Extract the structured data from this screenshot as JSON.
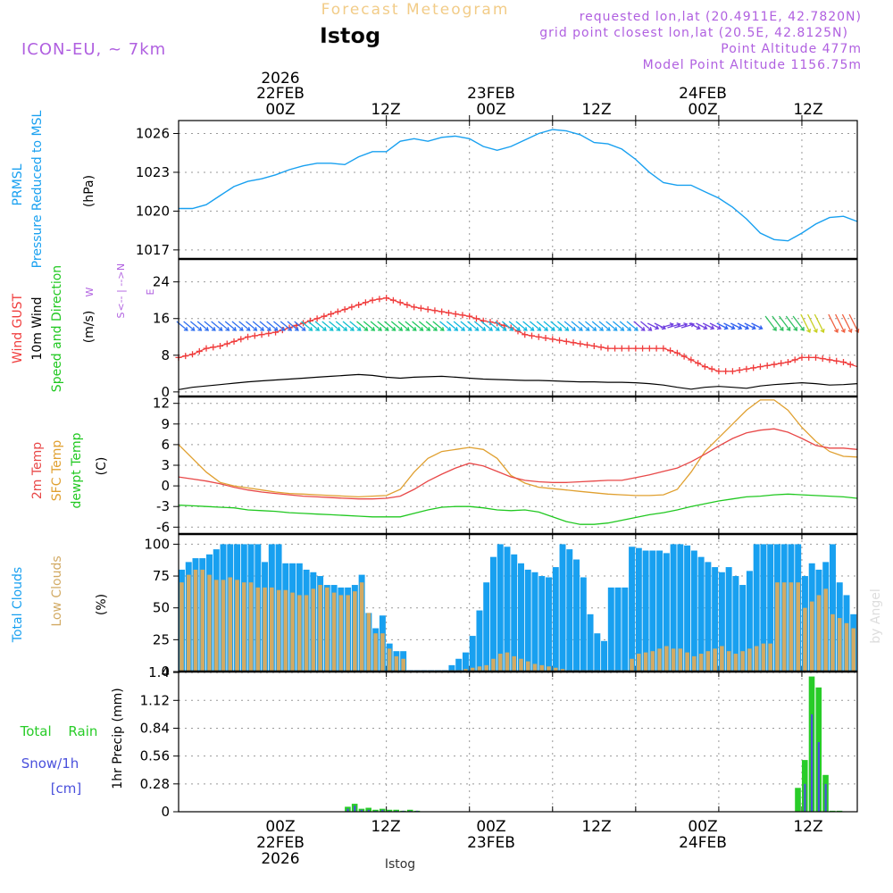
{
  "header": {
    "title": "Forecast Meteogram",
    "station": "Istog",
    "model": "ICON-EU, ~ 7km",
    "requested": "requested lon,lat (20.4911E, 42.7820N)",
    "grid_point": "grid point closest lon,lat (20.5E, 42.8125N)",
    "point_altitude": "Point Altitude 477m",
    "model_altitude": "Model Point Altitude 1156.75m",
    "footer_station": "Istog",
    "credit": "by Angel"
  },
  "time_axis": {
    "top_ticks": [
      "00Z",
      "12Z",
      "00Z",
      "12Z",
      "00Z",
      "12Z"
    ],
    "bottom_ticks": [
      "00Z",
      "12Z",
      "00Z",
      "12Z",
      "00Z",
      "12Z"
    ],
    "date_labels": [
      "22FEB",
      "23FEB",
      "24FEB"
    ],
    "year": "2026"
  },
  "colors": {
    "pressure": "#18a0f0",
    "gust": "#f03c3c",
    "wind": "#000000",
    "wind_label": "#20c820",
    "temp": "#e84848",
    "sfc_temp": "#e0a030",
    "dewpt": "#20c820",
    "total_clouds": "#18a0f0",
    "low_clouds": "#d2aa64",
    "rain": "#28cc28",
    "snow": "#4a50dc",
    "purple": "#b060e0"
  },
  "chart_data": [
    {
      "type": "line",
      "title": "PRMSL Pressure Reduced to MSL",
      "label_lines": [
        "PRMSL",
        "Pressure Reduced to MSL"
      ],
      "unit": "(hPa)",
      "x_start_hours": -30,
      "x_end_hours": 68,
      "ylim": [
        1016.3,
        1027.0
      ],
      "yticks": [
        1017,
        1020,
        1023,
        1026
      ],
      "series": [
        {
          "name": "Pressure",
          "x": [
            -30,
            -28,
            -26,
            -24,
            -22,
            -20,
            -18,
            -16,
            -14,
            -12,
            -10,
            -8,
            -6,
            -4,
            -2,
            0,
            2,
            4,
            6,
            8,
            10,
            12,
            14,
            16,
            18,
            20,
            22,
            24,
            26,
            28,
            30,
            32,
            34,
            36,
            38,
            40,
            42,
            44,
            46,
            48,
            50,
            52,
            54,
            56,
            58,
            60,
            62,
            64,
            66,
            68
          ],
          "values": [
            1020.2,
            1020.2,
            1020.5,
            1021.2,
            1021.9,
            1022.3,
            1022.5,
            1022.8,
            1023.2,
            1023.5,
            1023.7,
            1023.7,
            1023.6,
            1024.2,
            1024.6,
            1024.6,
            1025.4,
            1025.6,
            1025.4,
            1025.7,
            1025.8,
            1025.6,
            1025.0,
            1024.7,
            1025.0,
            1025.5,
            1026.0,
            1026.3,
            1026.2,
            1025.9,
            1025.3,
            1025.2,
            1024.8,
            1024.0,
            1023.0,
            1022.2,
            1022.0,
            1022.0,
            1021.5,
            1021.0,
            1020.3,
            1019.4,
            1018.3,
            1017.8,
            1017.7,
            1018.3,
            1019.0,
            1019.5,
            1019.6,
            1019.2
          ]
        }
      ]
    },
    {
      "type": "line",
      "title": "Wind GUST, 10m Wind Speed and Direction",
      "label_lines": [
        "Wind GUST",
        "10m Wind",
        "Speed and Direction"
      ],
      "unit": "(m/s)",
      "compass": [
        "N",
        "E",
        "S",
        "W"
      ],
      "x_start_hours": -30,
      "x_end_hours": 68,
      "ylim": [
        -1,
        29
      ],
      "yticks": [
        0,
        8,
        16,
        24
      ],
      "series": [
        {
          "name": "Wind GUST",
          "x": [
            -30,
            -28,
            -26,
            -24,
            -22,
            -20,
            -18,
            -16,
            -14,
            -12,
            -10,
            -8,
            -6,
            -4,
            -2,
            0,
            2,
            4,
            6,
            8,
            10,
            12,
            14,
            16,
            18,
            20,
            22,
            24,
            26,
            28,
            30,
            32,
            34,
            36,
            38,
            40,
            42,
            44,
            46,
            48,
            50,
            52,
            54,
            56,
            58,
            60,
            62,
            64,
            66,
            68
          ],
          "values": [
            7.5,
            8.2,
            9.5,
            10.0,
            11.0,
            12.0,
            12.5,
            13.0,
            14.0,
            15.0,
            16.0,
            17.0,
            18.0,
            19.0,
            20.0,
            20.5,
            19.5,
            18.5,
            18.0,
            17.5,
            17.0,
            16.5,
            15.5,
            15.0,
            14.0,
            12.5,
            12.0,
            11.5,
            11.0,
            10.5,
            10.0,
            9.5,
            9.5,
            9.5,
            9.5,
            9.5,
            8.5,
            7.0,
            5.5,
            4.5,
            4.5,
            5.0,
            5.5,
            6.0,
            6.5,
            7.5,
            7.5,
            7.0,
            6.5,
            5.5
          ]
        },
        {
          "name": "10m Wind",
          "x": [
            -30,
            -28,
            -26,
            -24,
            -22,
            -20,
            -18,
            -16,
            -14,
            -12,
            -10,
            -8,
            -6,
            -4,
            -2,
            0,
            2,
            4,
            6,
            8,
            10,
            12,
            14,
            16,
            18,
            20,
            22,
            24,
            26,
            28,
            30,
            32,
            34,
            36,
            38,
            40,
            42,
            44,
            46,
            48,
            50,
            52,
            54,
            56,
            58,
            60,
            62,
            64,
            66,
            68
          ],
          "values": [
            0.5,
            1.0,
            1.3,
            1.6,
            1.9,
            2.2,
            2.4,
            2.6,
            2.8,
            3.0,
            3.2,
            3.4,
            3.6,
            3.8,
            3.6,
            3.2,
            3.0,
            3.2,
            3.3,
            3.4,
            3.2,
            3.0,
            2.8,
            2.7,
            2.6,
            2.5,
            2.5,
            2.4,
            2.3,
            2.2,
            2.2,
            2.1,
            2.1,
            2.0,
            1.8,
            1.5,
            1.0,
            0.6,
            1.0,
            1.2,
            1.0,
            0.8,
            1.3,
            1.6,
            1.8,
            2.0,
            1.8,
            1.5,
            1.6,
            1.8
          ]
        }
      ]
    },
    {
      "type": "line",
      "title": "2m Temp, SFC Temp, dewpt Temp",
      "label_lines": [
        "2m Temp",
        "SFC Temp",
        "dewpt Temp"
      ],
      "unit": "(C)",
      "x_start_hours": -30,
      "x_end_hours": 68,
      "ylim": [
        -7,
        13
      ],
      "yticks": [
        -6,
        -3,
        0,
        3,
        6,
        9,
        12
      ],
      "series": [
        {
          "name": "2m Temp",
          "x": [
            -30,
            -28,
            -26,
            -24,
            -22,
            -20,
            -18,
            -16,
            -14,
            -12,
            -10,
            -8,
            -6,
            -4,
            -2,
            0,
            2,
            4,
            6,
            8,
            10,
            12,
            14,
            16,
            18,
            20,
            22,
            24,
            26,
            28,
            30,
            32,
            34,
            36,
            38,
            40,
            42,
            44,
            46,
            48,
            50,
            52,
            54,
            56,
            58,
            60,
            62,
            64,
            66,
            68
          ],
          "values": [
            1.3,
            1.0,
            0.7,
            0.3,
            -0.2,
            -0.6,
            -0.9,
            -1.1,
            -1.3,
            -1.5,
            -1.6,
            -1.7,
            -1.8,
            -1.9,
            -1.9,
            -1.8,
            -1.5,
            -0.5,
            0.7,
            1.7,
            2.6,
            3.3,
            2.9,
            2.1,
            1.3,
            0.8,
            0.6,
            0.5,
            0.5,
            0.6,
            0.7,
            0.8,
            0.8,
            1.2,
            1.6,
            2.1,
            2.6,
            3.5,
            4.6,
            5.8,
            6.9,
            7.7,
            8.1,
            8.3,
            7.8,
            6.9,
            5.9,
            5.5,
            5.5,
            5.3
          ]
        },
        {
          "name": "SFC Temp",
          "x": [
            -30,
            -28,
            -26,
            -24,
            -22,
            -20,
            -18,
            -16,
            -14,
            -12,
            -10,
            -8,
            -6,
            -4,
            -2,
            0,
            2,
            4,
            6,
            8,
            10,
            12,
            14,
            16,
            18,
            20,
            22,
            24,
            26,
            28,
            30,
            32,
            34,
            36,
            38,
            40,
            42,
            44,
            46,
            48,
            50,
            52,
            54,
            56,
            58,
            60,
            62,
            64,
            66,
            68
          ],
          "values": [
            6.0,
            4.0,
            2.0,
            0.5,
            0.0,
            -0.3,
            -0.6,
            -0.9,
            -1.1,
            -1.2,
            -1.3,
            -1.4,
            -1.5,
            -1.6,
            -1.5,
            -1.4,
            -0.5,
            2.0,
            4.0,
            5.0,
            5.3,
            5.6,
            5.3,
            4.0,
            1.5,
            0.4,
            -0.2,
            -0.4,
            -0.6,
            -0.8,
            -1.0,
            -1.2,
            -1.3,
            -1.4,
            -1.4,
            -1.3,
            -0.5,
            2.0,
            5.0,
            7.0,
            9.0,
            11.0,
            12.5,
            12.5,
            11.0,
            8.5,
            6.5,
            5.0,
            4.3,
            4.2
          ]
        },
        {
          "name": "dewpt Temp",
          "x": [
            -30,
            -28,
            -26,
            -24,
            -22,
            -20,
            -18,
            -16,
            -14,
            -12,
            -10,
            -8,
            -6,
            -4,
            -2,
            0,
            2,
            4,
            6,
            8,
            10,
            12,
            14,
            16,
            18,
            20,
            22,
            24,
            26,
            28,
            30,
            32,
            34,
            36,
            38,
            40,
            42,
            44,
            46,
            48,
            50,
            52,
            54,
            56,
            58,
            60,
            62,
            64,
            66,
            68
          ],
          "values": [
            -2.8,
            -2.9,
            -3.0,
            -3.1,
            -3.2,
            -3.5,
            -3.6,
            -3.7,
            -3.9,
            -4.0,
            -4.1,
            -4.2,
            -4.3,
            -4.4,
            -4.5,
            -4.5,
            -4.5,
            -4.0,
            -3.5,
            -3.1,
            -3.0,
            -3.0,
            -3.2,
            -3.5,
            -3.6,
            -3.5,
            -3.8,
            -4.5,
            -5.2,
            -5.6,
            -5.6,
            -5.4,
            -5.0,
            -4.6,
            -4.2,
            -3.9,
            -3.5,
            -3.0,
            -2.6,
            -2.2,
            -1.9,
            -1.6,
            -1.5,
            -1.3,
            -1.2,
            -1.3,
            -1.4,
            -1.5,
            -1.6,
            -1.8
          ]
        }
      ]
    },
    {
      "type": "bar",
      "title": "Total Clouds, Low Clouds",
      "label_lines": [
        "Total Clouds",
        "Low Clouds"
      ],
      "unit": "(%)",
      "x_start_hours": -30,
      "x_end_hours": 68,
      "ylim": [
        0,
        108
      ],
      "yticks": [
        0,
        25,
        50,
        75,
        100
      ],
      "x": [
        -30,
        -29,
        -28,
        -27,
        -26,
        -25,
        -24,
        -23,
        -22,
        -21,
        -20,
        -19,
        -18,
        -17,
        -16,
        -15,
        -14,
        -13,
        -12,
        -11,
        -10,
        -9,
        -8,
        -7,
        -6,
        -5,
        -4,
        -3,
        -2,
        -1,
        0,
        1,
        2,
        3,
        4,
        5,
        6,
        7,
        8,
        9,
        10,
        11,
        12,
        13,
        14,
        15,
        16,
        17,
        18,
        19,
        20,
        21,
        22,
        23,
        24,
        25,
        26,
        27,
        28,
        29,
        30,
        31,
        32,
        33,
        34,
        35,
        36,
        37,
        38,
        39,
        40,
        41,
        42,
        43,
        44,
        45,
        46,
        47,
        48,
        49,
        50,
        51,
        52,
        53,
        54,
        55,
        56,
        57,
        58,
        59,
        60,
        61,
        62,
        63,
        64,
        65,
        66,
        67,
        68
      ],
      "series": [
        {
          "name": "Total Clouds",
          "values": [
            80,
            86,
            89,
            89,
            92,
            96,
            100,
            100,
            100,
            100,
            100,
            100,
            86,
            100,
            100,
            85,
            85,
            85,
            80,
            78,
            75,
            68,
            68,
            66,
            66,
            68,
            76,
            46,
            34,
            44,
            22,
            16,
            16,
            1,
            1,
            1,
            1,
            1,
            1,
            5,
            10,
            15,
            28,
            48,
            70,
            90,
            100,
            98,
            92,
            85,
            80,
            78,
            75,
            74,
            82,
            100,
            96,
            88,
            74,
            45,
            30,
            24,
            66,
            66,
            66,
            98,
            97,
            95,
            95,
            95,
            93,
            100,
            100,
            99,
            95,
            90,
            86,
            82,
            78,
            82,
            75,
            68,
            79,
            100,
            100,
            100,
            100,
            100,
            100,
            100,
            75,
            85,
            80,
            86,
            100,
            70,
            60,
            45,
            24
          ]
        },
        {
          "name": "Low Clouds",
          "values": [
            70,
            76,
            80,
            80,
            76,
            72,
            72,
            74,
            72,
            70,
            70,
            66,
            66,
            66,
            64,
            64,
            62,
            60,
            60,
            65,
            68,
            66,
            62,
            60,
            60,
            63,
            70,
            46,
            30,
            30,
            18,
            12,
            10,
            0,
            0,
            0,
            0,
            0,
            0,
            1,
            1,
            2,
            3,
            4,
            5,
            10,
            14,
            15,
            12,
            10,
            8,
            6,
            5,
            4,
            3,
            2,
            1,
            1,
            1,
            1,
            1,
            1,
            1,
            1,
            1,
            10,
            14,
            15,
            16,
            18,
            20,
            18,
            18,
            15,
            12,
            14,
            16,
            18,
            20,
            16,
            14,
            16,
            18,
            20,
            22,
            22,
            70,
            70,
            70,
            70,
            50,
            55,
            60,
            65,
            45,
            42,
            38,
            34,
            22
          ]
        }
      ]
    },
    {
      "type": "bar",
      "title": "1hr Precip (mm)",
      "label_lines": [
        "Total Rain",
        "Snow/1h",
        "[cm]"
      ],
      "axis_label": "1hr Precip (mm)",
      "x_start_hours": -30,
      "x_end_hours": 68,
      "ylim": [
        0,
        1.41
      ],
      "yticks": [
        "0",
        "0.28",
        "0.56",
        "0.84",
        "1.12",
        "1.4"
      ],
      "x": [
        -6,
        -5,
        -4,
        -3,
        -2,
        -1,
        0,
        1,
        2,
        3,
        4,
        59,
        60,
        61,
        62,
        63,
        64,
        65
      ],
      "series": [
        {
          "name": "Total Rain",
          "values": [
            0.05,
            0.08,
            0.03,
            0.04,
            0.02,
            0.03,
            0.02,
            0.02,
            0.01,
            0.02,
            0.01,
            0.24,
            0.52,
            1.36,
            1.25,
            0.37,
            0.01,
            0.01
          ]
        },
        {
          "name": "Snow/1h",
          "values": [
            0.03,
            0.06,
            0.02,
            0.02,
            0.01,
            0.02,
            0.01,
            0.01,
            0.01,
            0.01,
            0.01,
            0.0,
            0.28,
            0.98,
            0.7,
            0.28,
            0.0,
            0.0
          ]
        }
      ]
    }
  ]
}
